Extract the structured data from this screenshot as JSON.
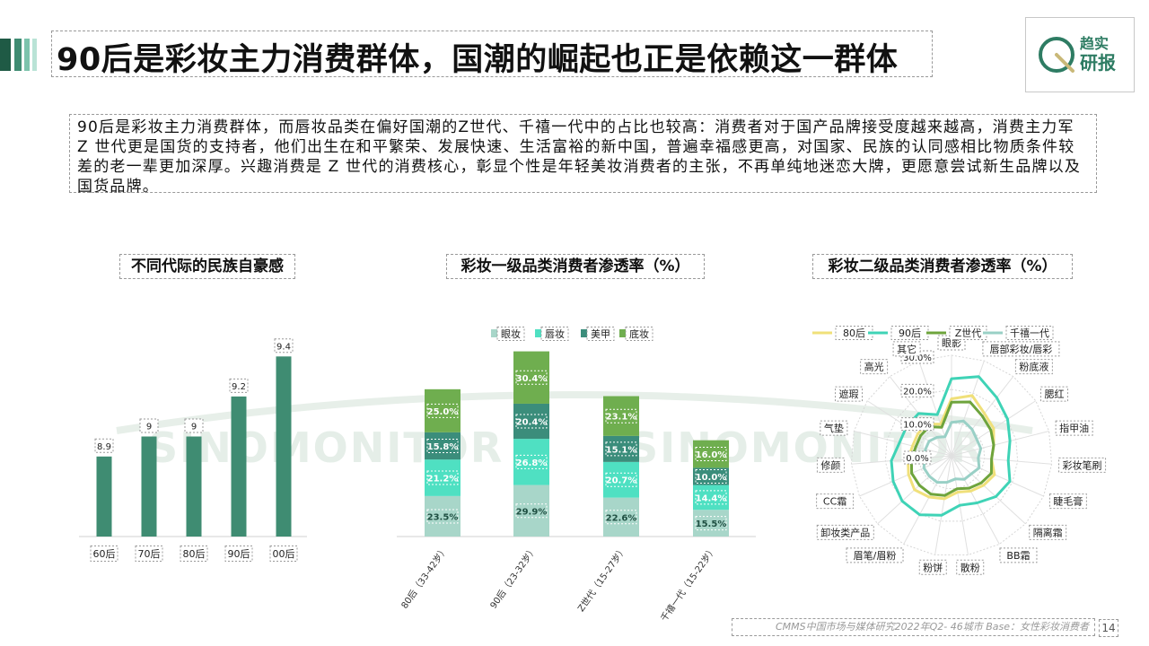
{
  "header": {
    "title": "90后是彩妆主力消费群体，国潮的崛起也正是依赖这一群体",
    "logo_line1": "趋实",
    "logo_line2": "研报"
  },
  "summary": {
    "text": "90后是彩妆主力消费群体，而唇妆品类在偏好国潮的Z世代、千禧一代中的占比也较高：消费者对于国产品牌接受度越来越高，消费主力军 Z 世代更是国货的支持者，他们出生在和平繁荣、发展快速、生活富裕的新中国，普遍幸福感更高，对国家、民族的认同感相比物质条件较差的老一辈更加深厚。兴趣消费是 Z 世代的消费核心，彰显个性是年轻美妆消费者的主张，不再单纯地迷恋大牌，更愿意尝试新生品牌以及国货品牌。"
  },
  "watermark": "SINOMONITOR",
  "colors": {
    "dark_green": "#3f8c72",
    "accent_dark": "#1f5a45",
    "accent_light": "#9fd6c4",
    "eye": "#a8d6c9",
    "lip": "#4fe0c2",
    "nail": "#3b8d7b",
    "base": "#6fae4f",
    "s80": "#f0e07a",
    "s90": "#3fd3b6",
    "sz": "#6ea43c",
    "sm": "#99d0c6"
  },
  "footer": {
    "source": "CMMS中国市场与媒体研究2022年Q2- 46城市 Base：女性彩妆消费者",
    "page": "14"
  },
  "chart_data": [
    {
      "type": "bar",
      "title": "不同代际的民族自豪感",
      "categories": [
        "60后",
        "70后",
        "80后",
        "90后",
        "00后"
      ],
      "values": [
        8.9,
        9,
        9,
        9.2,
        9.4
      ],
      "value_labels": [
        "8.9",
        "9",
        "9",
        "9.2",
        "9.4"
      ],
      "ylim": [
        8.5,
        9.5
      ]
    },
    {
      "type": "bar",
      "stacked": true,
      "title": "彩妆一级品类消费者渗透率（%）",
      "legend": [
        "眼妆",
        "唇妆",
        "美甲",
        "底妆"
      ],
      "legend_position": "top",
      "categories": [
        "80后（33-42岁）",
        "90后（23-32岁）",
        "Z世代（15-27岁）",
        "千禧一代（15-22岁）"
      ],
      "series": [
        {
          "name": "眼妆",
          "values": [
            23.5,
            29.9,
            22.6,
            15.5
          ]
        },
        {
          "name": "唇妆",
          "values": [
            21.2,
            26.8,
            20.7,
            14.4
          ]
        },
        {
          "name": "美甲",
          "values": [
            15.8,
            20.4,
            15.1,
            10.0
          ]
        },
        {
          "name": "底妆",
          "values": [
            25.0,
            30.4,
            23.1,
            16.0
          ]
        }
      ]
    },
    {
      "type": "radar",
      "title": "彩妆二级品类消费者渗透率（%）",
      "legend": [
        "80后",
        "90后",
        "Z世代",
        "千禧一代"
      ],
      "legend_position": "top",
      "axes": [
        "眼影",
        "唇部彩妆/唇彩",
        "粉底液",
        "腮红",
        "指甲油",
        "彩妆笔刷",
        "睫毛膏",
        "隔离霜",
        "BB霜",
        "散粉",
        "粉饼",
        "眉笔/眉粉",
        "卸妆类产品",
        "CC霜",
        "修颜",
        "气垫",
        "遮瑕",
        "高光",
        "其它"
      ],
      "ticks": [
        "0.0%",
        "10.0%",
        "20.0%",
        "30.0%"
      ],
      "rlim": [
        0,
        30
      ],
      "series": [
        {
          "name": "80后",
          "values": [
            17,
            19,
            16,
            15,
            13,
            12,
            14,
            13,
            12,
            11,
            13,
            14,
            15,
            14,
            13,
            12,
            12,
            12,
            10
          ]
        },
        {
          "name": "90后",
          "values": [
            23,
            25,
            22,
            20,
            18,
            17,
            19,
            18,
            16,
            15,
            18,
            20,
            20,
            19,
            18,
            16,
            16,
            16,
            13
          ]
        },
        {
          "name": "Z世代",
          "values": [
            16,
            17,
            15,
            14,
            13,
            12,
            13,
            12,
            11,
            10,
            12,
            13,
            13,
            13,
            12,
            11,
            11,
            11,
            9
          ]
        },
        {
          "name": "千禧一代",
          "values": [
            10,
            11,
            10,
            9,
            9,
            8,
            9,
            8,
            8,
            7,
            8,
            9,
            9,
            9,
            8,
            8,
            8,
            7,
            6
          ]
        }
      ]
    }
  ]
}
